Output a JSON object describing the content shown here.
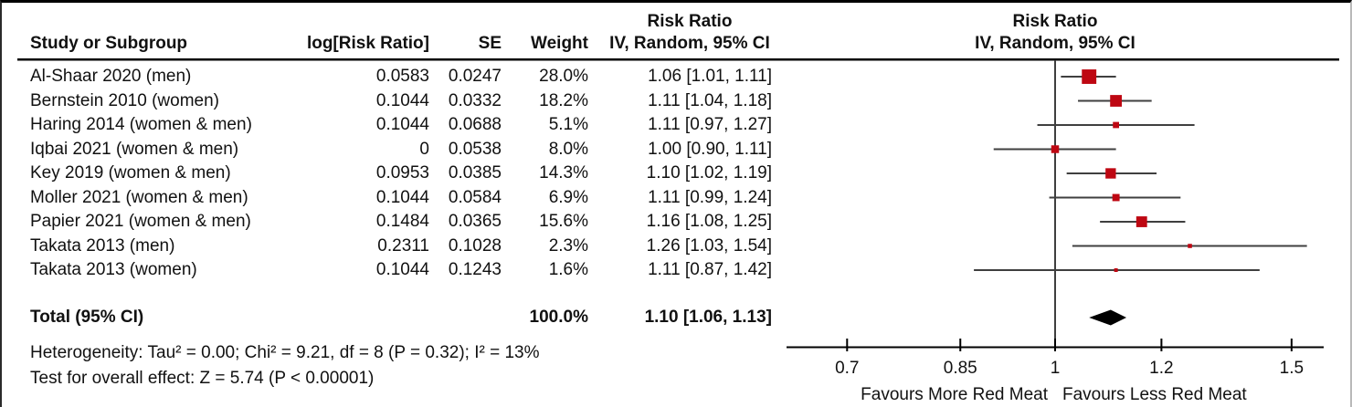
{
  "header": {
    "study_col": "Study or Subgroup",
    "log_rr_col": "log[Risk Ratio]",
    "se_col": "SE",
    "weight_col": "Weight",
    "stats_title_line1": "Risk Ratio",
    "stats_title_line2": "IV, Random, 95% CI",
    "plot_title_line1": "Risk Ratio",
    "plot_title_line2": "IV, Random, 95% CI"
  },
  "chart_data": {
    "type": "scatter",
    "subtype": "forest_plot_meta_analysis",
    "x_scale": "log",
    "x_ticks": [
      0.7,
      0.85,
      1,
      1.2,
      1.5
    ],
    "x_tick_labels": [
      "0.7",
      "0.85",
      "1",
      "1.2",
      "1.5"
    ],
    "xlim": [
      0.63,
      1.585
    ],
    "x_axis_label_left": "Favours More Red Meat",
    "x_axis_label_right": "Favours Less Red Meat",
    "marker_color": "#be0712",
    "line_color": "#3f3f3f",
    "diamond_color": "#000000",
    "studies": [
      {
        "study": "Al-Shaar 2020 (men)",
        "log_rr": "0.0583",
        "se": "0.0247",
        "weight": "28.0%",
        "weight_pct": 28.0,
        "rr_text": "1.06 [1.01, 1.11]",
        "rr": 1.06,
        "ci_low": 1.01,
        "ci_high": 1.11
      },
      {
        "study": "Bernstein 2010 (women)",
        "log_rr": "0.1044",
        "se": "0.0332",
        "weight": "18.2%",
        "weight_pct": 18.2,
        "rr_text": "1.11 [1.04, 1.18]",
        "rr": 1.11,
        "ci_low": 1.04,
        "ci_high": 1.18
      },
      {
        "study": "Haring 2014 (women & men)",
        "log_rr": "0.1044",
        "se": "0.0688",
        "weight": "5.1%",
        "weight_pct": 5.1,
        "rr_text": "1.11 [0.97, 1.27]",
        "rr": 1.11,
        "ci_low": 0.97,
        "ci_high": 1.27
      },
      {
        "study": "Iqbai 2021 (women & men)",
        "log_rr": "0",
        "se": "0.0538",
        "weight": "8.0%",
        "weight_pct": 8.0,
        "rr_text": "1.00 [0.90, 1.11]",
        "rr": 1.0,
        "ci_low": 0.9,
        "ci_high": 1.11
      },
      {
        "study": "Key 2019 (women & men)",
        "log_rr": "0.0953",
        "se": "0.0385",
        "weight": "14.3%",
        "weight_pct": 14.3,
        "rr_text": "1.10 [1.02, 1.19]",
        "rr": 1.1,
        "ci_low": 1.02,
        "ci_high": 1.19
      },
      {
        "study": "Moller 2021 (women & men)",
        "log_rr": "0.1044",
        "se": "0.0584",
        "weight": "6.9%",
        "weight_pct": 6.9,
        "rr_text": "1.11 [0.99, 1.24]",
        "rr": 1.11,
        "ci_low": 0.99,
        "ci_high": 1.24
      },
      {
        "study": "Papier 2021 (women & men)",
        "log_rr": "0.1484",
        "se": "0.0365",
        "weight": "15.6%",
        "weight_pct": 15.6,
        "rr_text": "1.16 [1.08, 1.25]",
        "rr": 1.16,
        "ci_low": 1.08,
        "ci_high": 1.25
      },
      {
        "study": "Takata 2013 (men)",
        "log_rr": "0.2311",
        "se": "0.1028",
        "weight": "2.3%",
        "weight_pct": 2.3,
        "rr_text": "1.26 [1.03, 1.54]",
        "rr": 1.26,
        "ci_low": 1.03,
        "ci_high": 1.54
      },
      {
        "study": "Takata 2013 (women)",
        "log_rr": "0.1044",
        "se": "0.1243",
        "weight": "1.6%",
        "weight_pct": 1.6,
        "rr_text": "1.11 [0.87, 1.42]",
        "rr": 1.11,
        "ci_low": 0.87,
        "ci_high": 1.42
      }
    ],
    "total": {
      "label": "Total (95% CI)",
      "weight": "100.0%",
      "rr_text": "1.10 [1.06, 1.13]",
      "rr": 1.1,
      "ci_low": 1.06,
      "ci_high": 1.13
    }
  },
  "footer": {
    "heterogeneity": "Heterogeneity: Tau² = 0.00; Chi² = 9.21, df = 8 (P = 0.32); I² = 13%",
    "overall_effect": "Test for overall effect: Z = 5.74 (P < 0.00001)"
  }
}
